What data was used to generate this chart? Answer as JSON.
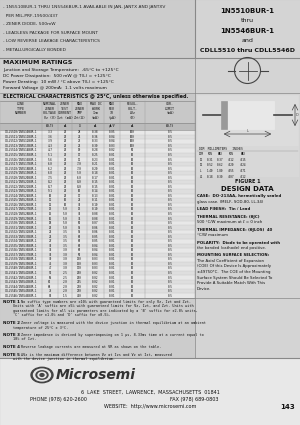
{
  "bullet_points": [
    "- 1N5510BUR-1 THRU 1N5546BUR-1 AVAILABLE IN JAN, JANTX AND JANTXV",
    "  PER MIL-PRF-19500/437",
    "- ZENER DIODE, 500mW",
    "- LEADLESS PACKAGE FOR SURFACE MOUNT",
    "- LOW REVERSE LEAKAGE CHARACTERISTICS",
    "- METALLURGICALLY BONDED"
  ],
  "title_lines": [
    "1N5510BUR-1",
    "thru",
    "1N5546BUR-1",
    "and",
    "CDLL5510 thru CDLL5546D"
  ],
  "max_ratings_title": "MAXIMUM RATINGS",
  "max_ratings": [
    "Junction and Storage Temperature:  -65°C to +125°C",
    "DC Power Dissipation:  500 mW @ T(L) = +125°C",
    "Power Derating:  10 mW / °C above T(L) = +125°C",
    "Forward Voltage @ 200mA:  1.1 volts maximum"
  ],
  "elec_title": "ELECTRICAL CHARACTERISTICS @ 25°C, unless otherwise specified.",
  "col_headers_line1": [
    "LINE",
    "NOMINAL",
    "ZENER",
    "MAX ZENER",
    "MAXIMUM DC",
    "MAXIMUM",
    "REGULATION",
    "ΔVz"
  ],
  "col_headers_line2": [
    "TYPE",
    "ZENER",
    "TEST",
    "IMPEDANCE",
    "WORKING",
    "REVERSE",
    "VOLTAGE",
    "VOLTAGE"
  ],
  "col_headers_line3": [
    "NUMBER",
    "VOLTAGE",
    "CURRENT",
    "AT TEST",
    "PEAK SURGE",
    "CURRENT",
    "CURRENT",
    "CHANGE"
  ],
  "col_headers_line4": [
    "",
    "Vz(V)",
    "Izt(mA)",
    "CURRENT",
    "CURRENT",
    "IR(μA)",
    "",
    ""
  ],
  "col_headers_line5": [
    "",
    "",
    "",
    "Zzt(Ω)",
    "Izm(mA)",
    "@ VR(V)",
    "",
    ""
  ],
  "sub_headers": [
    "VOLTS",
    "mA",
    "Ω",
    "mA",
    "μA/V",
    "mA",
    "VOLTS"
  ],
  "rows": [
    [
      "CDLL5510/1N5510BUR-1",
      "3.3",
      "20",
      "28",
      "0.38",
      "0.05",
      "100",
      "0.5"
    ],
    [
      "CDLL5511/1N5511BUR-1",
      "3.6",
      "20",
      "24",
      "0.36",
      "0.04",
      "100",
      "0.5"
    ],
    [
      "CDLL5512/1N5512BUR-1",
      "3.9",
      "20",
      "23",
      "0.33",
      "0.04",
      "100",
      "0.5"
    ],
    [
      "CDLL5513/1N5513BUR-1",
      "4.3",
      "20",
      "22",
      "0.30",
      "0.03",
      "100",
      "0.5"
    ],
    [
      "CDLL5514/1N5514BUR-1",
      "4.7",
      "20",
      "19",
      "0.28",
      "0.02",
      "50",
      "0.5"
    ],
    [
      "CDLL5515/1N5515BUR-1",
      "5.1",
      "20",
      "17",
      "0.25",
      "0.01",
      "10",
      "0.5"
    ],
    [
      "CDLL5516/1N5516BUR-1",
      "5.6",
      "20",
      "11",
      "0.23",
      "0.01",
      "10",
      "0.5"
    ],
    [
      "CDLL5517/1N5517BUR-1",
      "6.0",
      "20",
      "7.0",
      "0.21",
      "0.01",
      "10",
      "0.5"
    ],
    [
      "CDLL5518/1N5518BUR-1",
      "6.2",
      "20",
      "7.0",
      "0.20",
      "0.01",
      "10",
      "0.5"
    ],
    [
      "CDLL5519/1N5519BUR-1",
      "6.8",
      "20",
      "5.0",
      "0.18",
      "0.01",
      "10",
      "0.5"
    ],
    [
      "CDLL5520/1N5520BUR-1",
      "7.5",
      "20",
      "6.0",
      "0.17",
      "0.01",
      "10",
      "0.5"
    ],
    [
      "CDLL5521/1N5521BUR-1",
      "8.2",
      "20",
      "8.0",
      "0.15",
      "0.01",
      "10",
      "0.5"
    ],
    [
      "CDLL5522/1N5522BUR-1",
      "8.7",
      "20",
      "8.0",
      "0.15",
      "0.01",
      "10",
      "0.5"
    ],
    [
      "CDLL5523/1N5523BUR-1",
      "9.1",
      "20",
      "10",
      "0.14",
      "0.01",
      "10",
      "0.5"
    ],
    [
      "CDLL5524/1N5524BUR-1",
      "10",
      "20",
      "17",
      "0.13",
      "0.01",
      "10",
      "0.5"
    ],
    [
      "CDLL5525/1N5525BUR-1",
      "11",
      "10",
      "22",
      "0.11",
      "0.01",
      "10",
      "0.5"
    ],
    [
      "CDLL5526/1N5526BUR-1",
      "12",
      "10",
      "30",
      "0.10",
      "0.01",
      "10",
      "0.5"
    ],
    [
      "CDLL5527/1N5527BUR-1",
      "13",
      "5.0",
      "13",
      "0.10",
      "0.01",
      "10",
      "0.5"
    ],
    [
      "CDLL5528/1N5528BUR-1",
      "15",
      "5.0",
      "30",
      "0.08",
      "0.01",
      "10",
      "0.5"
    ],
    [
      "CDLL5529/1N5529BUR-1",
      "16",
      "5.0",
      "34",
      "0.08",
      "0.01",
      "10",
      "0.5"
    ],
    [
      "CDLL5530/1N5530BUR-1",
      "18",
      "5.0",
      "50",
      "0.07",
      "0.01",
      "10",
      "0.5"
    ],
    [
      "CDLL5531/1N5531BUR-1",
      "20",
      "5.0",
      "55",
      "0.06",
      "0.01",
      "10",
      "0.5"
    ],
    [
      "CDLL5532/1N5532BUR-1",
      "22",
      "3.5",
      "55",
      "0.06",
      "0.01",
      "10",
      "0.5"
    ],
    [
      "CDLL5533/1N5533BUR-1",
      "24",
      "3.5",
      "80",
      "0.05",
      "0.01",
      "10",
      "0.5"
    ],
    [
      "CDLL5534/1N5534BUR-1",
      "27",
      "3.5",
      "80",
      "0.05",
      "0.01",
      "10",
      "0.5"
    ],
    [
      "CDLL5535/1N5535BUR-1",
      "30",
      "3.5",
      "80",
      "0.04",
      "0.01",
      "10",
      "0.5"
    ],
    [
      "CDLL5536/1N5536BUR-1",
      "33",
      "3.0",
      "80",
      "0.04",
      "0.01",
      "10",
      "0.5"
    ],
    [
      "CDLL5537/1N5537BUR-1",
      "36",
      "3.0",
      "90",
      "0.04",
      "0.01",
      "10",
      "0.5"
    ],
    [
      "CDLL5538/1N5538BUR-1",
      "39",
      "3.0",
      "130",
      "0.03",
      "0.01",
      "10",
      "0.5"
    ],
    [
      "CDLL5539/1N5539BUR-1",
      "43",
      "3.0",
      "150",
      "0.03",
      "0.01",
      "10",
      "0.5"
    ],
    [
      "CDLL5540/1N5540BUR-1",
      "47",
      "3.0",
      "170",
      "0.03",
      "0.01",
      "10",
      "0.5"
    ],
    [
      "CDLL5541/1N5541BUR-1",
      "51",
      "2.5",
      "200",
      "0.02",
      "0.01",
      "10",
      "0.5"
    ],
    [
      "CDLL5542/1N5542BUR-1",
      "56",
      "2.5",
      "200",
      "0.02",
      "0.01",
      "10",
      "0.5"
    ],
    [
      "CDLL5543/1N5543BUR-1",
      "62",
      "2.0",
      "215",
      "0.02",
      "0.01",
      "10",
      "0.5"
    ],
    [
      "CDLL5544/1N5544BUR-1",
      "68",
      "2.0",
      "230",
      "0.02",
      "0.01",
      "10",
      "0.5"
    ],
    [
      "CDLL5545/1N5545BUR-1",
      "75",
      "2.0",
      "250",
      "0.02",
      "0.01",
      "10",
      "0.5"
    ],
    [
      "CDLL5546/1N5546BUR-1",
      "82",
      "1.5",
      "400",
      "0.02",
      "0.01",
      "10",
      "0.5"
    ]
  ],
  "notes": [
    [
      "NOTE 1",
      "No suffix type numbers are ±10% with guaranteed limits for only Vz, Izt and Zzt.",
      "Units with 'A' suffix are ±5% with guaranteed limits for Vz, Izt, and Zzt. Units with",
      "guaranteed limits for all six parameters are indicated by a 'B' suffix for ±2.0% units,",
      "'C' suffix for ±1.0% and 'D' suffix for ±0.5%."
    ],
    [
      "NOTE 2",
      "Zener voltage is measured with the device junction in thermal equilibrium at an ambient",
      "temperature of 25°C ± 3°C."
    ],
    [
      "NOTE 3",
      "Zener impedance is derived by superimposing on 1 μs, 8.33ms time at a current equal to",
      "10% of Izt."
    ],
    [
      "NOTE 4",
      "Reverse leakage currents are measured at VR as shown on the table."
    ],
    [
      "NOTE 5",
      "ΔVz is the maximum difference between Vz at Izs and Vz at Izt, measured",
      "with the device junction in thermal equilibrium."
    ]
  ],
  "design_data_title": "DESIGN DATA",
  "design_data_lines": [
    "CASE:  DO-213AA, hermetically sealed",
    "glass case. (MELF, SOD-80, LL-34)",
    "",
    "LEAD FINISH:  Tin / Lead",
    "",
    "THERMAL RESISTANCE: (θJC)",
    "500 °C/W maximum at ℓ = 0 inch",
    "",
    "THERMAL IMPEDANCE: (θJLOS)  40",
    "°C/W maximum",
    "",
    "POLARITY:  Diode to be operated with",
    "the banded (cathode) end positive.",
    "",
    "MOUNTING SURFACE SELECTION:",
    "The Axial Coefficient of Expansion",
    "(COE) Of this Device Is Approximately",
    "±49750*C.  The COE of the Mounting",
    "Surface System Should Be Selected To",
    "Provide A Suitable Match With This",
    "Device."
  ],
  "dim_table_header": [
    "DIM",
    "MILLIMETERS",
    "INCHES"
  ],
  "dim_table_subheader": [
    "",
    "MIN",
    "MAX",
    "MIN",
    "MAX"
  ],
  "dim_rows": [
    [
      "D1",
      "0.31",
      "0.37",
      ".012",
      ".015"
    ],
    [
      "D2",
      "0.52",
      "0.62",
      ".020",
      ".024"
    ],
    [
      "L",
      "1.40",
      "1.80",
      ".055",
      ".071"
    ],
    [
      "L1",
      "0.18",
      "0.30",
      ".007",
      ".012"
    ]
  ],
  "figure_label": "FIGURE 1",
  "footer_address": "6  LAKE  STREET,  LAWRENCE,  MASSACHUSETTS  01841",
  "footer_phone": "PHONE (978) 620-2600",
  "footer_fax": "FAX (978) 689-0803",
  "footer_website": "WEBSITE:  http://www.microsemi.com",
  "footer_page": "143",
  "bg": "#c8c8c8",
  "white": "#ffffff",
  "dark": "#222222",
  "mid": "#b0b0b0"
}
